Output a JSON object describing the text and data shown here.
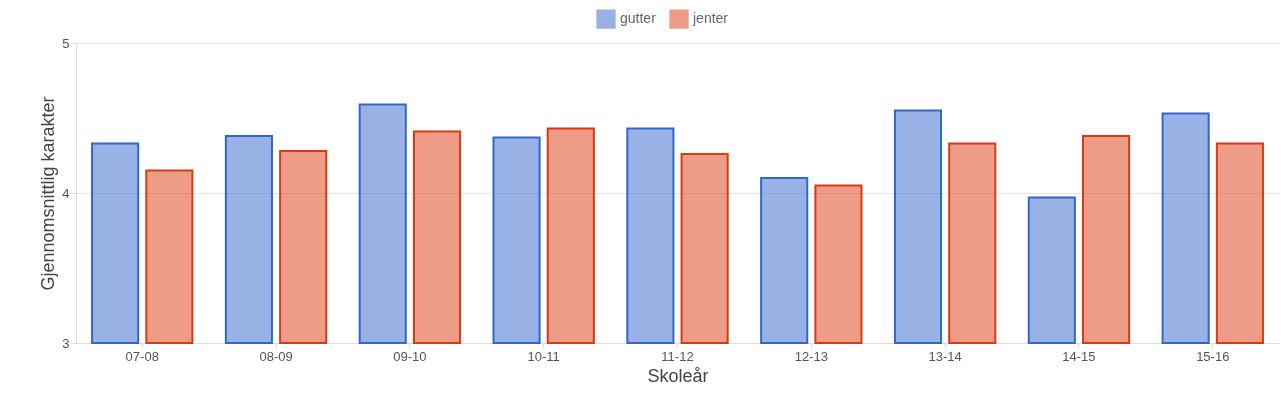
{
  "chart_data": {
    "type": "bar",
    "xlabel": "Skoleår",
    "ylabel": "Gjennomsnittlig karakter",
    "categories": [
      "07-08",
      "08-09",
      "09-10",
      "10-11",
      "11-12",
      "12-13",
      "13-14",
      "14-15",
      "15-16"
    ],
    "series": [
      {
        "name": "gutter",
        "color": "#3366cc",
        "values": [
          4.33,
          4.38,
          4.59,
          4.37,
          4.43,
          4.1,
          4.55,
          3.97,
          4.53
        ]
      },
      {
        "name": "jenter",
        "color": "#dc3912",
        "values": [
          4.15,
          4.28,
          4.41,
          4.43,
          4.26,
          4.05,
          4.33,
          4.38,
          4.33
        ]
      }
    ],
    "ylim": [
      3,
      5
    ],
    "yticks": [
      3,
      4,
      5
    ],
    "grid": "y",
    "legend": "top"
  }
}
